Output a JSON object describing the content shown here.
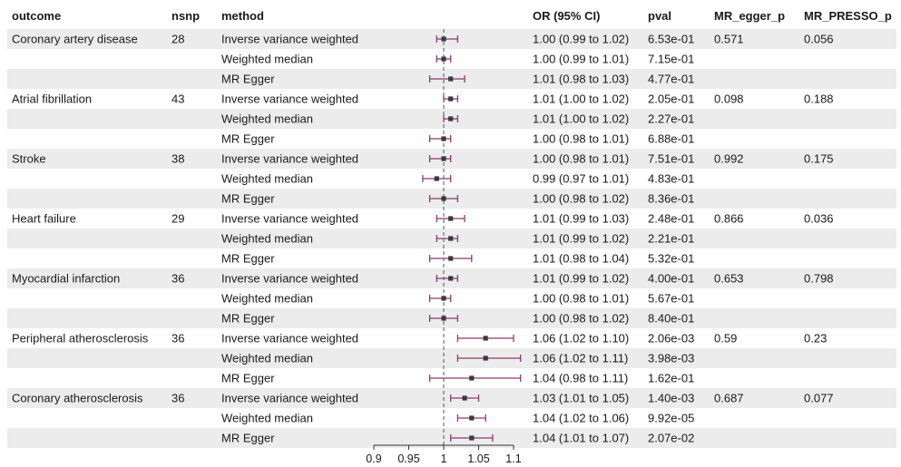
{
  "columns": {
    "outcome": "outcome",
    "nsnp": "nsnp",
    "method": "method",
    "or_ci": "OR (95% CI)",
    "pval": "pval",
    "egger": "MR_egger_p",
    "presso": "MR_PRESSO_p"
  },
  "colors": {
    "stripe": "#ececec",
    "ci_line": "#8a3a72",
    "point": "#3a3a3a",
    "ref_line": "#555555"
  },
  "chart_data": {
    "type": "forest",
    "xlim": [
      0.9,
      1.1
    ],
    "xticks": [
      0.9,
      0.95,
      1,
      1.05,
      1.1
    ],
    "xtick_labels": [
      "0.9",
      "0.95",
      "1",
      "1.05",
      "1.1"
    ],
    "reference_line": 1,
    "rows": [
      {
        "outcome": "Coronary artery disease",
        "nsnp": "28",
        "method": "Inverse variance weighted",
        "or": 1.0,
        "lo": 0.99,
        "hi": 1.02,
        "or_ci": "1.00 (0.99 to 1.02)",
        "pval": "6.53e-01",
        "egger": "0.571",
        "presso": "0.056"
      },
      {
        "outcome": "",
        "nsnp": "",
        "method": "Weighted median",
        "or": 1.0,
        "lo": 0.99,
        "hi": 1.01,
        "or_ci": "1.00 (0.99 to 1.01)",
        "pval": "7.15e-01",
        "egger": "",
        "presso": ""
      },
      {
        "outcome": "",
        "nsnp": "",
        "method": "MR Egger",
        "or": 1.01,
        "lo": 0.98,
        "hi": 1.03,
        "or_ci": "1.01 (0.98 to 1.03)",
        "pval": "4.77e-01",
        "egger": "",
        "presso": ""
      },
      {
        "outcome": "Atrial fibrillation",
        "nsnp": "43",
        "method": "Inverse variance weighted",
        "or": 1.01,
        "lo": 1.0,
        "hi": 1.02,
        "or_ci": "1.01 (1.00 to 1.02)",
        "pval": "2.05e-01",
        "egger": "0.098",
        "presso": "0.188"
      },
      {
        "outcome": "",
        "nsnp": "",
        "method": "Weighted median",
        "or": 1.01,
        "lo": 1.0,
        "hi": 1.02,
        "or_ci": "1.01 (1.00 to 1.02)",
        "pval": "2.27e-01",
        "egger": "",
        "presso": ""
      },
      {
        "outcome": "",
        "nsnp": "",
        "method": "MR Egger",
        "or": 1.0,
        "lo": 0.98,
        "hi": 1.01,
        "or_ci": "1.00 (0.98 to 1.01)",
        "pval": "6.88e-01",
        "egger": "",
        "presso": ""
      },
      {
        "outcome": "Stroke",
        "nsnp": "38",
        "method": "Inverse variance weighted",
        "or": 1.0,
        "lo": 0.98,
        "hi": 1.01,
        "or_ci": "1.00 (0.98 to 1.01)",
        "pval": "7.51e-01",
        "egger": "0.992",
        "presso": "0.175"
      },
      {
        "outcome": "",
        "nsnp": "",
        "method": "Weighted median",
        "or": 0.99,
        "lo": 0.97,
        "hi": 1.01,
        "or_ci": "0.99 (0.97 to 1.01)",
        "pval": "4.83e-01",
        "egger": "",
        "presso": ""
      },
      {
        "outcome": "",
        "nsnp": "",
        "method": "MR Egger",
        "or": 1.0,
        "lo": 0.98,
        "hi": 1.02,
        "or_ci": "1.00 (0.98 to 1.02)",
        "pval": "8.36e-01",
        "egger": "",
        "presso": ""
      },
      {
        "outcome": "Heart failure",
        "nsnp": "29",
        "method": "Inverse variance weighted",
        "or": 1.01,
        "lo": 0.99,
        "hi": 1.03,
        "or_ci": "1.01 (0.99 to 1.03)",
        "pval": "2.48e-01",
        "egger": "0.866",
        "presso": "0.036"
      },
      {
        "outcome": "",
        "nsnp": "",
        "method": "Weighted median",
        "or": 1.01,
        "lo": 0.99,
        "hi": 1.02,
        "or_ci": "1.01 (0.99 to 1.02)",
        "pval": "2.21e-01",
        "egger": "",
        "presso": ""
      },
      {
        "outcome": "",
        "nsnp": "",
        "method": "MR Egger",
        "or": 1.01,
        "lo": 0.98,
        "hi": 1.04,
        "or_ci": "1.01 (0.98 to 1.04)",
        "pval": "5.32e-01",
        "egger": "",
        "presso": ""
      },
      {
        "outcome": "Myocardial infarction",
        "nsnp": "36",
        "method": "Inverse variance weighted",
        "or": 1.01,
        "lo": 0.99,
        "hi": 1.02,
        "or_ci": "1.01 (0.99 to 1.02)",
        "pval": "4.00e-01",
        "egger": "0.653",
        "presso": "0.798"
      },
      {
        "outcome": "",
        "nsnp": "",
        "method": "Weighted median",
        "or": 1.0,
        "lo": 0.98,
        "hi": 1.01,
        "or_ci": "1.00 (0.98 to 1.01)",
        "pval": "5.67e-01",
        "egger": "",
        "presso": ""
      },
      {
        "outcome": "",
        "nsnp": "",
        "method": "MR Egger",
        "or": 1.0,
        "lo": 0.98,
        "hi": 1.02,
        "or_ci": "1.00 (0.98 to 1.02)",
        "pval": "8.40e-01",
        "egger": "",
        "presso": ""
      },
      {
        "outcome": "Peripheral atherosclerosis",
        "nsnp": "36",
        "method": "Inverse variance weighted",
        "or": 1.06,
        "lo": 1.02,
        "hi": 1.1,
        "or_ci": "1.06 (1.02 to 1.10)",
        "pval": "2.06e-03",
        "egger": "0.59",
        "presso": "0.23"
      },
      {
        "outcome": "",
        "nsnp": "",
        "method": "Weighted median",
        "or": 1.06,
        "lo": 1.02,
        "hi": 1.11,
        "or_ci": "1.06 (1.02 to 1.11)",
        "pval": "3.98e-03",
        "egger": "",
        "presso": ""
      },
      {
        "outcome": "",
        "nsnp": "",
        "method": "MR Egger",
        "or": 1.04,
        "lo": 0.98,
        "hi": 1.11,
        "or_ci": "1.04 (0.98 to 1.11)",
        "pval": "1.62e-01",
        "egger": "",
        "presso": ""
      },
      {
        "outcome": "Coronary atherosclerosis",
        "nsnp": "36",
        "method": "Inverse variance weighted",
        "or": 1.03,
        "lo": 1.01,
        "hi": 1.05,
        "or_ci": "1.03 (1.01 to 1.05)",
        "pval": "1.40e-03",
        "egger": "0.687",
        "presso": "0.077"
      },
      {
        "outcome": "",
        "nsnp": "",
        "method": "Weighted median",
        "or": 1.04,
        "lo": 1.02,
        "hi": 1.06,
        "or_ci": "1.04 (1.02 to 1.06)",
        "pval": "9.92e-05",
        "egger": "",
        "presso": ""
      },
      {
        "outcome": "",
        "nsnp": "",
        "method": "MR Egger",
        "or": 1.04,
        "lo": 1.01,
        "hi": 1.07,
        "or_ci": "1.04 (1.01 to 1.07)",
        "pval": "2.07e-02",
        "egger": "",
        "presso": ""
      }
    ]
  }
}
